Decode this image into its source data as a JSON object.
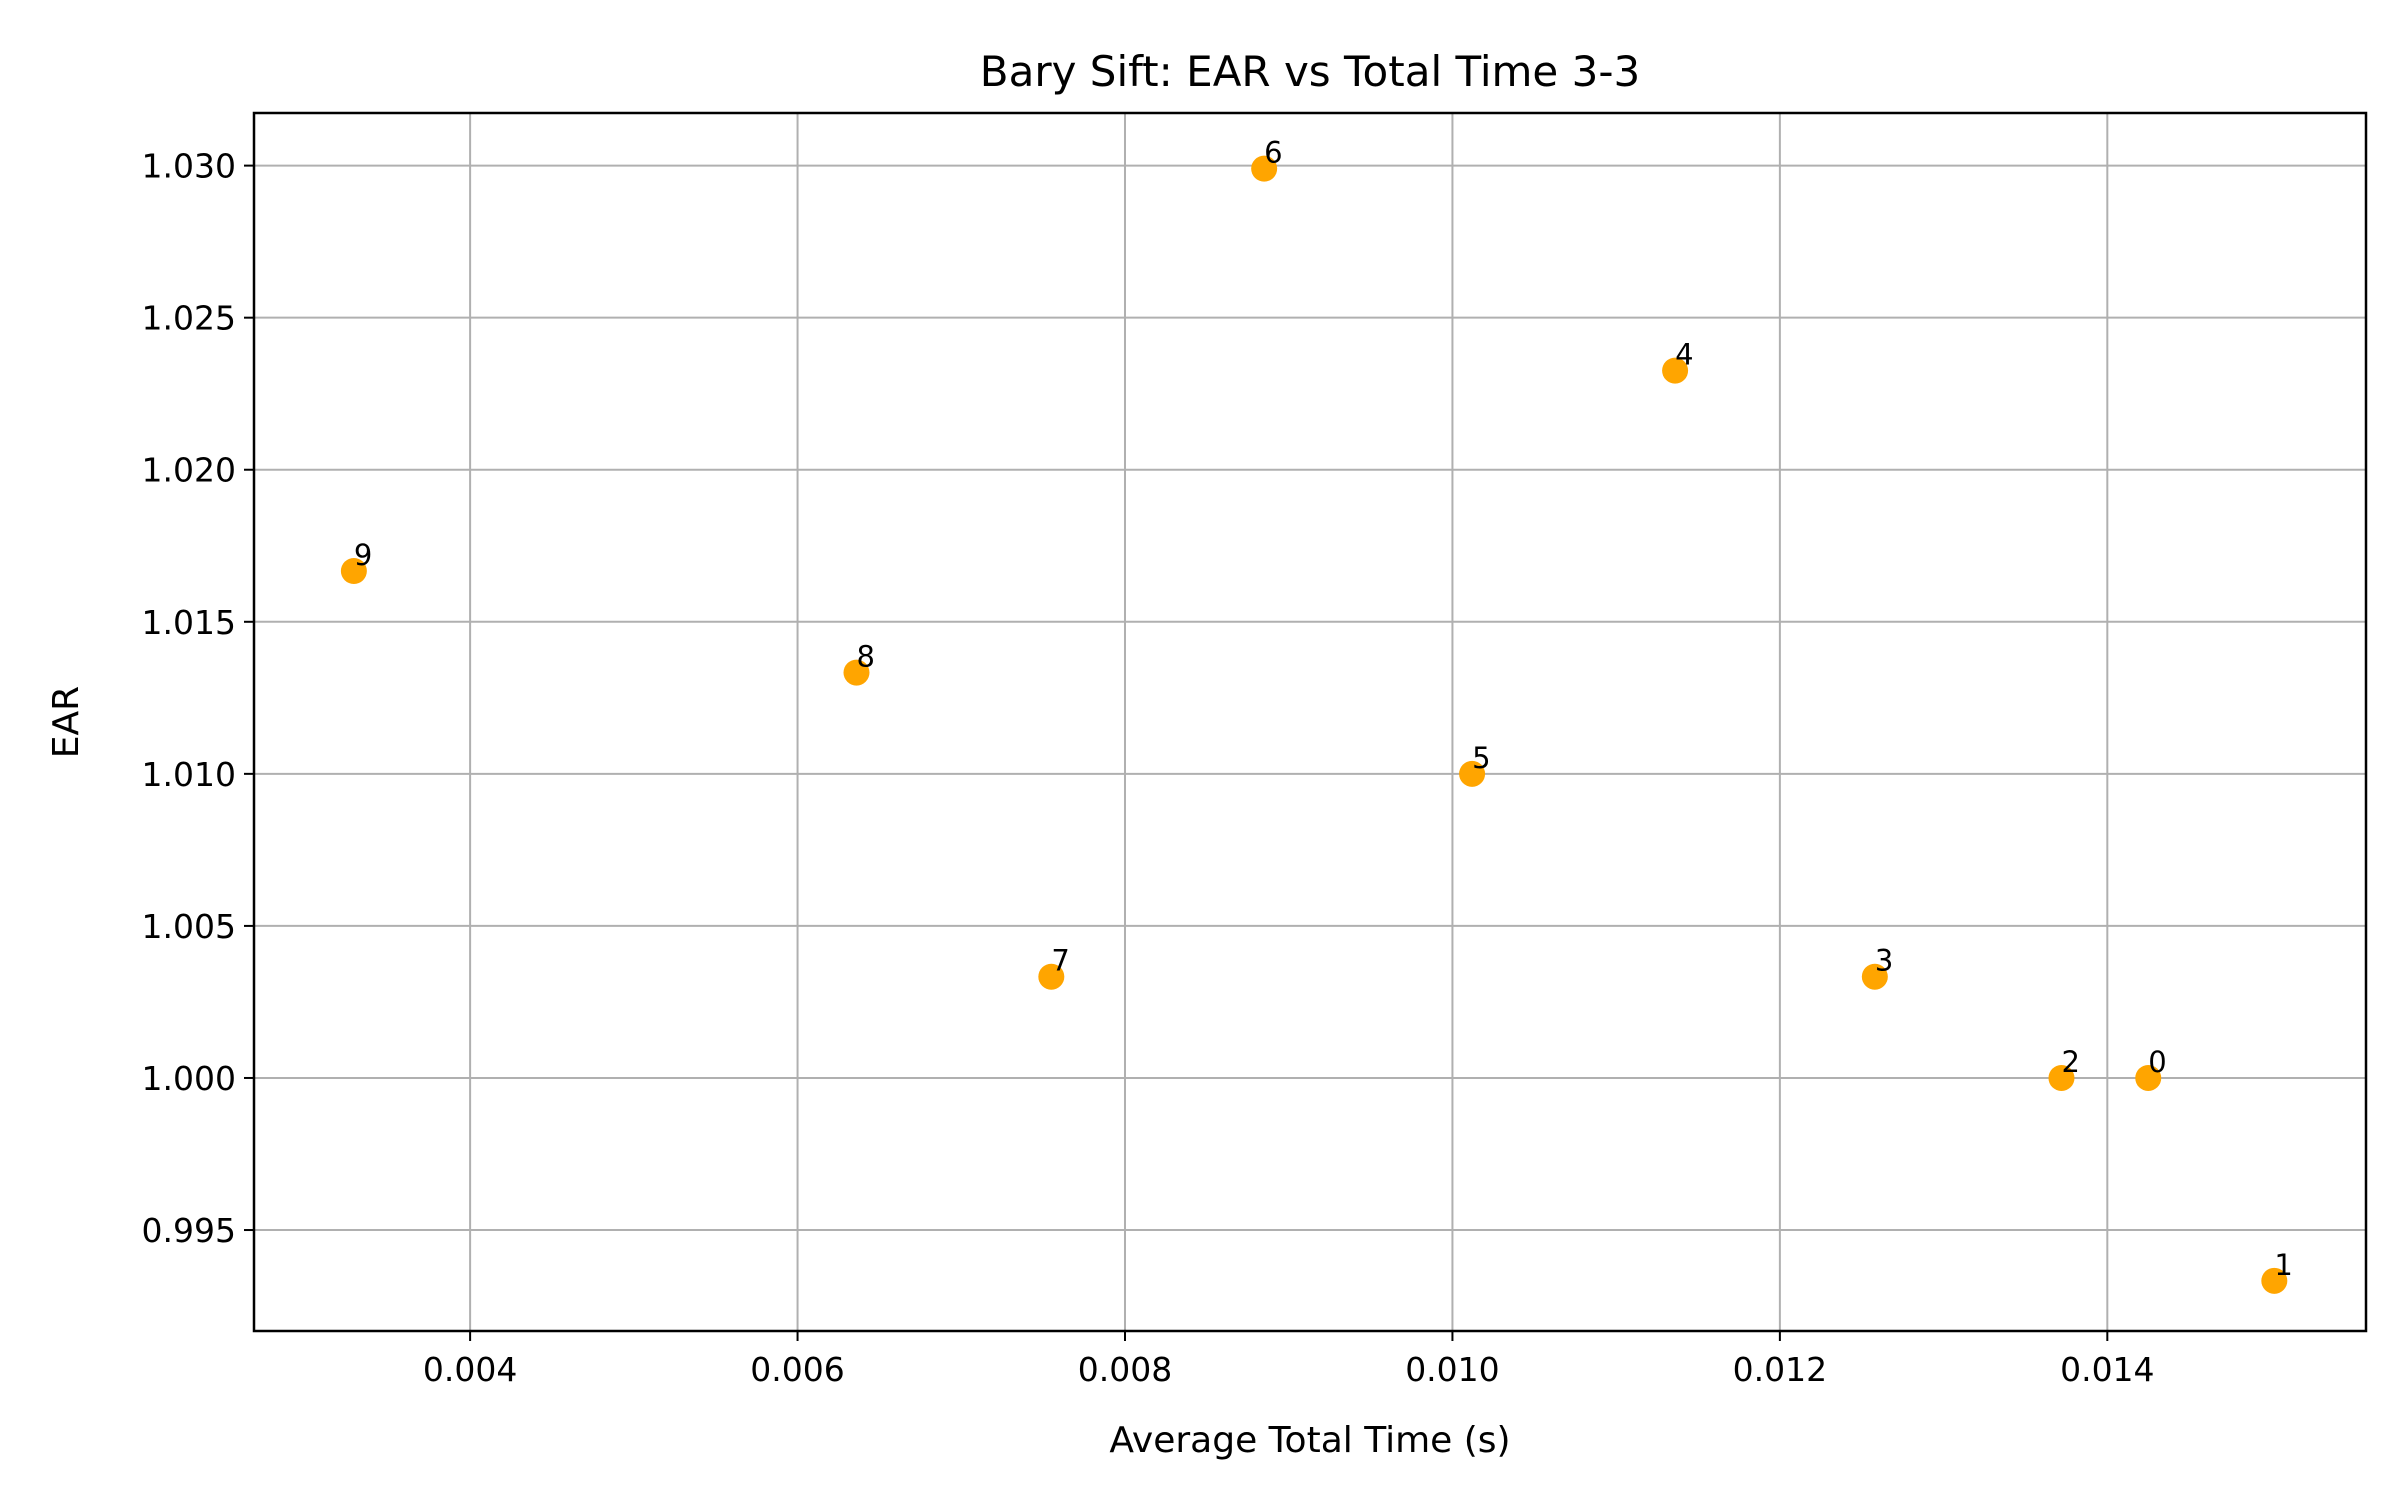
{
  "chart_data": {
    "type": "scatter",
    "title": "Bary Sift: EAR vs Total Time 3-3",
    "xlabel": "Average Total Time (s)",
    "ylabel": "EAR",
    "xlim": [
      0.00268,
      0.01558
    ],
    "ylim": [
      0.99168,
      1.03173
    ],
    "xticks": [
      "0.004",
      "0.006",
      "0.008",
      "0.010",
      "0.012",
      "0.014"
    ],
    "yticks": [
      "0.995",
      "1.000",
      "1.005",
      "1.010",
      "1.015",
      "1.020",
      "1.025",
      "1.030"
    ],
    "grid": true,
    "marker_color": "#ffa500",
    "points": [
      {
        "label": "0",
        "x": 0.01425,
        "y": 1.0
      },
      {
        "label": "1",
        "x": 0.01502,
        "y": 0.99333
      },
      {
        "label": "2",
        "x": 0.01372,
        "y": 1.0
      },
      {
        "label": "3",
        "x": 0.01258,
        "y": 1.00333
      },
      {
        "label": "4",
        "x": 0.01136,
        "y": 1.02326
      },
      {
        "label": "5",
        "x": 0.01012,
        "y": 1.01
      },
      {
        "label": "6",
        "x": 0.00885,
        "y": 1.0299
      },
      {
        "label": "7",
        "x": 0.00755,
        "y": 1.00333
      },
      {
        "label": "8",
        "x": 0.00636,
        "y": 1.01333
      },
      {
        "label": "9",
        "x": 0.00329,
        "y": 1.01667
      }
    ]
  }
}
